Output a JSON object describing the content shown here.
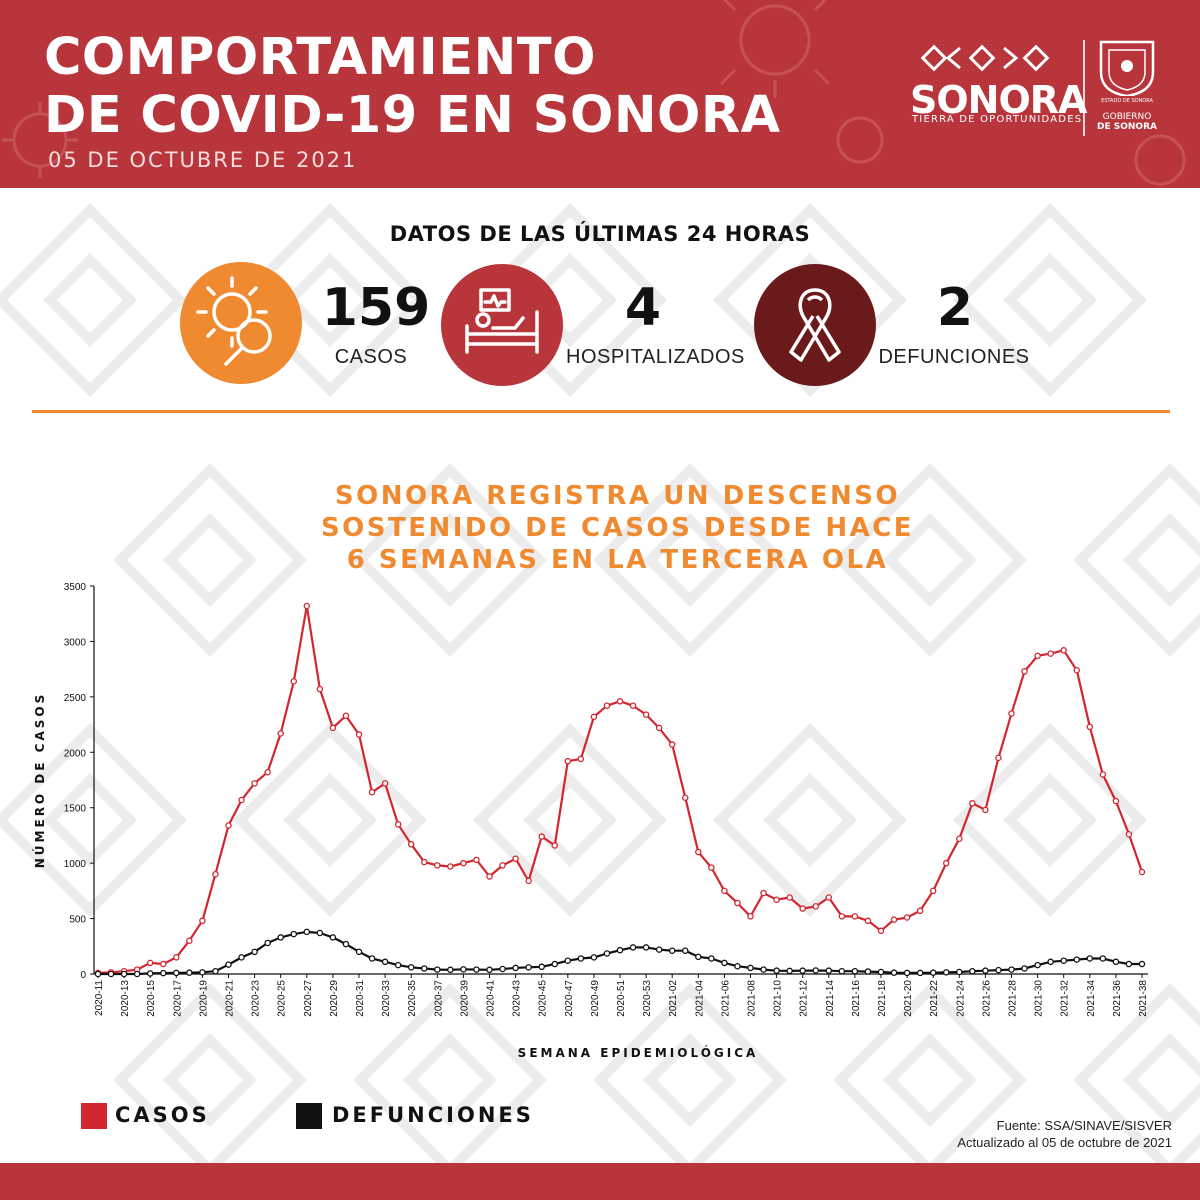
{
  "header": {
    "title_line1": "COMPORTAMIENTO",
    "title_line2": "DE COVID-19 EN SONORA",
    "date": "05 DE OCTUBRE DE 2021",
    "logo_word": "SONORA",
    "logo_tagline": "TIERRA DE OPORTUNIDADES",
    "state_label": "ESTADO DE SONORA",
    "gov_line1": "GOBIERNO",
    "gov_line2": "DE SONORA",
    "bg_color": "#b8363b"
  },
  "stats": {
    "title": "DATOS DE LAS ÚLTIMAS 24 HORAS",
    "items": [
      {
        "value": "159",
        "label": "CASOS",
        "icon": "virus-magnifier-icon",
        "color": "#f08a30"
      },
      {
        "value": "4",
        "label": "HOSPITALIZADOS",
        "icon": "hospital-bed-icon",
        "color": "#b8363b"
      },
      {
        "value": "2",
        "label": "DEFUNCIONES",
        "icon": "ribbon-icon",
        "color": "#6b1a1c"
      }
    ]
  },
  "headline": {
    "line1": "SONORA REGISTRA UN DESCENSO",
    "line2": "SOSTENIDO DE CASOS DESDE HACE",
    "line3": "6 SEMANAS EN LA TERCERA OLA"
  },
  "chart_data": {
    "type": "line",
    "title": "",
    "xlabel": "SEMANA EPIDEMIOLÓGICA",
    "ylabel": "NÚMERO DE CASOS",
    "ylim": [
      0,
      3500
    ],
    "yticks": [
      0,
      500,
      1000,
      1500,
      2000,
      2500,
      3000,
      3500
    ],
    "grid": false,
    "x": [
      "2020-11",
      "2020-12",
      "2020-13",
      "2020-14",
      "2020-15",
      "2020-16",
      "2020-17",
      "2020-18",
      "2020-19",
      "2020-20",
      "2020-21",
      "2020-22",
      "2020-23",
      "2020-24",
      "2020-25",
      "2020-26",
      "2020-27",
      "2020-28",
      "2020-29",
      "2020-30",
      "2020-31",
      "2020-32",
      "2020-33",
      "2020-34",
      "2020-35",
      "2020-36",
      "2020-37",
      "2020-38",
      "2020-39",
      "2020-40",
      "2020-41",
      "2020-42",
      "2020-43",
      "2020-44",
      "2020-45",
      "2020-46",
      "2020-47",
      "2020-48",
      "2020-49",
      "2020-50",
      "2020-51",
      "2020-52",
      "2020-53",
      "2021-01",
      "2021-02",
      "2021-03",
      "2021-04",
      "2021-05",
      "2021-06",
      "2021-07",
      "2021-08",
      "2021-09",
      "2021-10",
      "2021-11",
      "2021-12",
      "2021-13",
      "2021-14",
      "2021-15",
      "2021-16",
      "2021-17",
      "2021-18",
      "2021-19",
      "2021-20",
      "2021-21",
      "2021-22",
      "2021-23",
      "2021-24",
      "2021-25",
      "2021-26",
      "2021-27",
      "2021-28",
      "2021-29",
      "2021-30",
      "2021-31",
      "2021-32",
      "2021-33",
      "2021-34",
      "2021-35",
      "2021-36",
      "2021-37",
      "2021-38"
    ],
    "xtick_labels": [
      "2020-11",
      "2020-13",
      "2020-15",
      "2020-17",
      "2020-19",
      "2020-21",
      "2020-23",
      "2020-25",
      "2020-27",
      "2020-29",
      "2020-31",
      "2020-33",
      "2020-35",
      "2020-37",
      "2020-39",
      "2020-41",
      "2020-43",
      "2020-45",
      "2020-47",
      "2020-49",
      "2020-51",
      "2020-53",
      "2021-02",
      "2021-04",
      "2021-06",
      "2021-08",
      "2021-10",
      "2021-12",
      "2021-14",
      "2021-16",
      "2021-18",
      "2021-20",
      "2021-22",
      "2021-24",
      "2021-26",
      "2021-28",
      "2021-30",
      "2021-32",
      "2021-34",
      "2021-36",
      "2021-38"
    ],
    "series": [
      {
        "name": "CASOS",
        "color": "#d3262f",
        "values": [
          10,
          15,
          25,
          40,
          100,
          90,
          150,
          300,
          480,
          900,
          1340,
          1570,
          1720,
          1820,
          2170,
          2640,
          3320,
          2570,
          2220,
          2330,
          2160,
          1640,
          1720,
          1350,
          1170,
          1010,
          980,
          970,
          1000,
          1030,
          880,
          980,
          1040,
          840,
          1240,
          1160,
          1920,
          1940,
          2320,
          2420,
          2460,
          2420,
          2340,
          2220,
          2070,
          1590,
          1100,
          960,
          750,
          640,
          520,
          730,
          670,
          690,
          590,
          610,
          690,
          520,
          520,
          480,
          390,
          490,
          510,
          570,
          750,
          1000,
          1220,
          1540,
          1480,
          1950,
          2350,
          2730,
          2870,
          2890,
          2920,
          2740,
          2230,
          1800,
          1560,
          1260,
          920
        ]
      },
      {
        "name": "DEFUNCIONES",
        "color": "#111111",
        "values": [
          0,
          0,
          0,
          0,
          5,
          8,
          10,
          12,
          15,
          25,
          85,
          150,
          200,
          280,
          330,
          360,
          380,
          370,
          330,
          270,
          200,
          140,
          110,
          80,
          60,
          50,
          40,
          38,
          42,
          40,
          38,
          45,
          55,
          60,
          65,
          90,
          120,
          140,
          150,
          185,
          215,
          240,
          240,
          220,
          210,
          210,
          155,
          140,
          100,
          70,
          55,
          40,
          30,
          28,
          30,
          32,
          30,
          25,
          25,
          22,
          18,
          12,
          10,
          10,
          12,
          15,
          18,
          25,
          30,
          35,
          40,
          50,
          80,
          110,
          120,
          130,
          140,
          140,
          110,
          90,
          90
        ]
      }
    ]
  },
  "legend": [
    {
      "label": "CASOS",
      "color": "#d3262f"
    },
    {
      "label": "DEFUNCIONES",
      "color": "#111111"
    }
  ],
  "source": {
    "line1": "Fuente: SSA/SINAVE/SISVER",
    "line2": "Actualizado al 05 de octubre de 2021"
  }
}
